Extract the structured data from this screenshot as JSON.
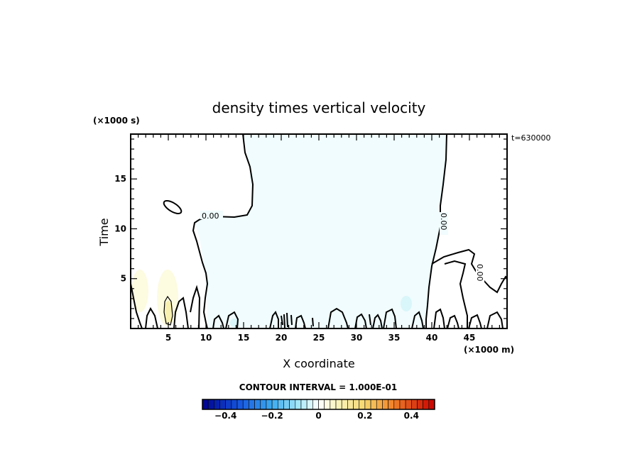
{
  "chart_data": {
    "type": "heatmap",
    "title": "density times vertical velocity",
    "xlabel": "X coordinate",
    "ylabel": "Time",
    "x_unit": "(×1000 m)",
    "y_unit": "(×1000 s)",
    "time_stamp": "t=630000",
    "xlim": [
      0,
      50
    ],
    "ylim": [
      0,
      19.5
    ],
    "x_ticks": [
      5,
      10,
      15,
      20,
      25,
      30,
      35,
      40,
      45
    ],
    "y_ticks": [
      5,
      10,
      15
    ],
    "contour_label": "0.00",
    "contour_interval_text": "CONTOUR INTERVAL = 1.000E-01",
    "colorbar": {
      "range": [
        -0.5,
        0.5
      ],
      "ticks": [
        -0.4,
        -0.2,
        0,
        0.2,
        0.4
      ],
      "tick_labels": [
        "−0.4",
        "−0.2",
        "0",
        "0.2",
        "0.4"
      ]
    },
    "grid": false,
    "colors": {
      "negative_fill": "#f0fcfd",
      "positive_fill": "#fdfbe0",
      "positive_core": "#f7f0b0",
      "contour": "#000000"
    }
  }
}
